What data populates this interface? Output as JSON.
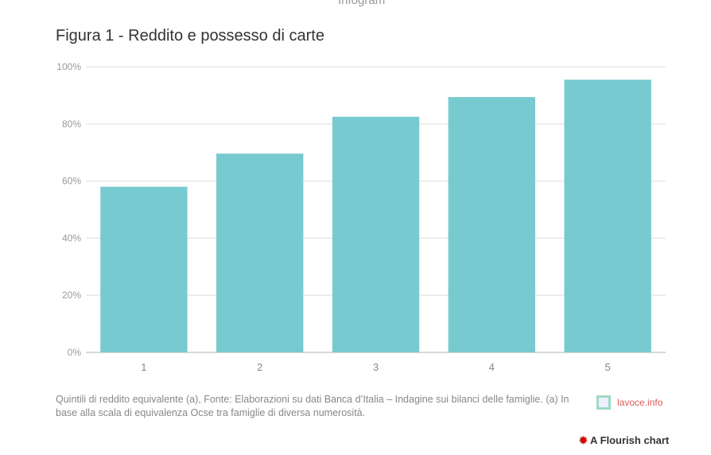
{
  "header": {
    "top_text": "Infogram"
  },
  "chart_data": {
    "type": "bar",
    "title": "Figura 1 - Reddito e possesso di carte",
    "categories": [
      "1",
      "2",
      "3",
      "4",
      "5"
    ],
    "values": [
      58,
      69.6,
      82.5,
      89.4,
      95.5
    ],
    "ylim": [
      0,
      100
    ],
    "yticks": [
      0,
      20,
      40,
      60,
      80,
      100
    ],
    "ytick_labels": [
      "0%",
      "20%",
      "40%",
      "60%",
      "80%",
      "100%"
    ],
    "xlabel": "",
    "ylabel": "",
    "grid": true,
    "bar_color": "#77cad0"
  },
  "footer": {
    "note": "Quintili di reddito equivalente (a), Fonte: Elaborazioni su dati Banca d’Italia – Indagine sui bilanci delle famiglie. (a) In base alla scala di equivalenza Ocse tra famiglie di diversa numerosità.",
    "logo_text": "lavoce.info",
    "flourish_label": "A Flourish chart"
  }
}
